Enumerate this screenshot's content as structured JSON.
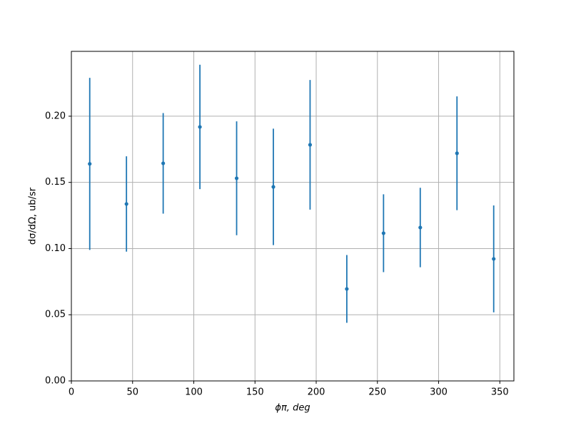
{
  "chart_data": {
    "type": "errorbar",
    "x_label": "ϕπ, deg",
    "y_label": "dσ/dΩ, ub/sr",
    "x": [
      15,
      45,
      75,
      105,
      135,
      165,
      195,
      225,
      255,
      285,
      315,
      345
    ],
    "values": [
      0.164,
      0.1337,
      0.1644,
      0.1919,
      0.1531,
      0.1466,
      0.1784,
      0.0695,
      0.1116,
      0.1159,
      0.172,
      0.0922
    ],
    "errors": [
      0.065,
      0.036,
      0.038,
      0.047,
      0.043,
      0.044,
      0.049,
      0.0256,
      0.0294,
      0.03,
      0.043,
      0.0404
    ],
    "color": "#1f77b4",
    "xlim": [
      0,
      361.5
    ],
    "ylim": [
      0,
      0.249
    ],
    "xticks": [
      0,
      50,
      100,
      150,
      200,
      250,
      300,
      350
    ],
    "yticks": [
      {
        "value": 0,
        "label": "0.00"
      },
      {
        "value": 0.05,
        "label": "0.05"
      },
      {
        "value": 0.1,
        "label": "0.10"
      },
      {
        "value": 0.15,
        "label": "0.15"
      },
      {
        "value": 0.2,
        "label": "0.20"
      }
    ],
    "grid": true
  }
}
